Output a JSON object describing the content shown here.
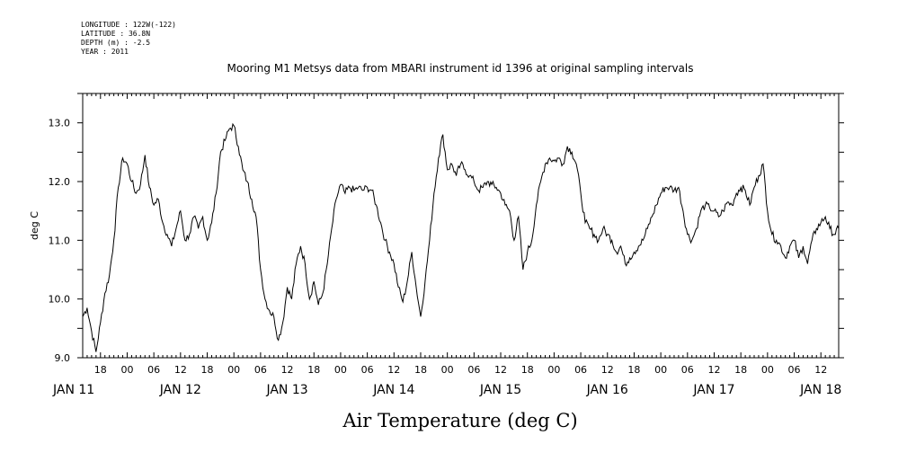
{
  "header": {
    "lines": [
      "LONGITUDE : 122W(-122)",
      "LATITUDE : 36.8N",
      "DEPTH (m) : -2.5",
      "YEAR : 2011"
    ]
  },
  "chart_data": {
    "type": "line",
    "title": "Mooring M1 Metsys data from MBARI instrument id 1396 at original sampling intervals",
    "xlabel": "Air Temperature (deg C)",
    "ylabel": "deg C",
    "xlim": [
      "2011-01-11T14:00",
      "2011-01-18T16:00"
    ],
    "ylim": [
      9.0,
      13.5
    ],
    "yticks": [
      "9.0",
      "10.0",
      "11.0",
      "12.0",
      "13.0"
    ],
    "hour_ticks": [
      {
        "t": "2011-01-11T18:00",
        "label": "18"
      },
      {
        "t": "2011-01-12T00:00",
        "label": "00"
      },
      {
        "t": "2011-01-12T06:00",
        "label": "06"
      },
      {
        "t": "2011-01-12T12:00",
        "label": "12"
      },
      {
        "t": "2011-01-12T18:00",
        "label": "18"
      },
      {
        "t": "2011-01-13T00:00",
        "label": "00"
      },
      {
        "t": "2011-01-13T06:00",
        "label": "06"
      },
      {
        "t": "2011-01-13T12:00",
        "label": "12"
      },
      {
        "t": "2011-01-13T18:00",
        "label": "18"
      },
      {
        "t": "2011-01-14T00:00",
        "label": "00"
      },
      {
        "t": "2011-01-14T06:00",
        "label": "06"
      },
      {
        "t": "2011-01-14T12:00",
        "label": "12"
      },
      {
        "t": "2011-01-14T18:00",
        "label": "18"
      },
      {
        "t": "2011-01-15T00:00",
        "label": "00"
      },
      {
        "t": "2011-01-15T06:00",
        "label": "06"
      },
      {
        "t": "2011-01-15T12:00",
        "label": "12"
      },
      {
        "t": "2011-01-15T18:00",
        "label": "18"
      },
      {
        "t": "2011-01-16T00:00",
        "label": "00"
      },
      {
        "t": "2011-01-16T06:00",
        "label": "06"
      },
      {
        "t": "2011-01-16T12:00",
        "label": "12"
      },
      {
        "t": "2011-01-16T18:00",
        "label": "18"
      },
      {
        "t": "2011-01-17T00:00",
        "label": "00"
      },
      {
        "t": "2011-01-17T06:00",
        "label": "06"
      },
      {
        "t": "2011-01-17T12:00",
        "label": "12"
      },
      {
        "t": "2011-01-17T18:00",
        "label": "18"
      },
      {
        "t": "2011-01-18T00:00",
        "label": "00"
      },
      {
        "t": "2011-01-18T06:00",
        "label": "06"
      },
      {
        "t": "2011-01-18T12:00",
        "label": "12"
      }
    ],
    "day_labels": [
      {
        "t": "2011-01-11T12:00",
        "label": "JAN 11"
      },
      {
        "t": "2011-01-12T12:00",
        "label": "JAN 12"
      },
      {
        "t": "2011-01-13T12:00",
        "label": "JAN 13"
      },
      {
        "t": "2011-01-14T12:00",
        "label": "JAN 14"
      },
      {
        "t": "2011-01-15T12:00",
        "label": "JAN 15"
      },
      {
        "t": "2011-01-16T12:00",
        "label": "JAN 16"
      },
      {
        "t": "2011-01-17T12:00",
        "label": "JAN 17"
      },
      {
        "t": "2011-01-18T12:00",
        "label": "JAN 18"
      }
    ],
    "series": [
      {
        "points": [
          [
            "2011-01-11T14:00",
            9.7
          ],
          [
            "2011-01-11T15:00",
            9.85
          ],
          [
            "2011-01-11T16:00",
            9.45
          ],
          [
            "2011-01-11T17:00",
            9.1
          ],
          [
            "2011-01-11T18:00",
            9.6
          ],
          [
            "2011-01-11T19:00",
            10.1
          ],
          [
            "2011-01-11T20:00",
            10.4
          ],
          [
            "2011-01-11T21:00",
            11.0
          ],
          [
            "2011-01-11T22:00",
            11.9
          ],
          [
            "2011-01-11T23:00",
            12.4
          ],
          [
            "2011-01-12T00:00",
            12.3
          ],
          [
            "2011-01-12T01:00",
            12.0
          ],
          [
            "2011-01-12T02:00",
            11.8
          ],
          [
            "2011-01-12T03:00",
            11.95
          ],
          [
            "2011-01-12T04:00",
            12.45
          ],
          [
            "2011-01-12T05:00",
            11.9
          ],
          [
            "2011-01-12T06:00",
            11.6
          ],
          [
            "2011-01-12T07:00",
            11.7
          ],
          [
            "2011-01-12T08:00",
            11.3
          ],
          [
            "2011-01-12T09:00",
            11.1
          ],
          [
            "2011-01-12T10:00",
            10.9
          ],
          [
            "2011-01-12T11:00",
            11.2
          ],
          [
            "2011-01-12T12:00",
            11.5
          ],
          [
            "2011-01-12T13:00",
            11.0
          ],
          [
            "2011-01-12T14:00",
            11.1
          ],
          [
            "2011-01-12T15:00",
            11.4
          ],
          [
            "2011-01-12T16:00",
            11.2
          ],
          [
            "2011-01-12T17:00",
            11.4
          ],
          [
            "2011-01-12T18:00",
            11.0
          ],
          [
            "2011-01-12T19:00",
            11.3
          ],
          [
            "2011-01-12T20:00",
            11.8
          ],
          [
            "2011-01-12T21:00",
            12.5
          ],
          [
            "2011-01-12T22:00",
            12.7
          ],
          [
            "2011-01-12T23:00",
            12.9
          ],
          [
            "2011-01-13T00:00",
            12.95
          ],
          [
            "2011-01-13T01:00",
            12.6
          ],
          [
            "2011-01-13T02:00",
            12.2
          ],
          [
            "2011-01-13T03:00",
            12.0
          ],
          [
            "2011-01-13T04:00",
            11.7
          ],
          [
            "2011-01-13T05:00",
            11.4
          ],
          [
            "2011-01-13T06:00",
            10.5
          ],
          [
            "2011-01-13T07:00",
            10.0
          ],
          [
            "2011-01-13T08:00",
            9.8
          ],
          [
            "2011-01-13T09:00",
            9.7
          ],
          [
            "2011-01-13T10:00",
            9.3
          ],
          [
            "2011-01-13T11:00",
            9.6
          ],
          [
            "2011-01-13T12:00",
            10.2
          ],
          [
            "2011-01-13T13:00",
            10.0
          ],
          [
            "2011-01-13T14:00",
            10.6
          ],
          [
            "2011-01-13T15:00",
            10.9
          ],
          [
            "2011-01-13T16:00",
            10.6
          ],
          [
            "2011-01-13T17:00",
            10.0
          ],
          [
            "2011-01-13T18:00",
            10.3
          ],
          [
            "2011-01-13T19:00",
            9.9
          ],
          [
            "2011-01-13T20:00",
            10.1
          ],
          [
            "2011-01-13T21:00",
            10.6
          ],
          [
            "2011-01-13T22:00",
            11.2
          ],
          [
            "2011-01-13T23:00",
            11.7
          ],
          [
            "2011-01-14T00:00",
            11.95
          ],
          [
            "2011-01-14T01:00",
            11.8
          ],
          [
            "2011-01-14T02:00",
            11.9
          ],
          [
            "2011-01-14T03:00",
            11.85
          ],
          [
            "2011-01-14T04:00",
            11.9
          ],
          [
            "2011-01-14T05:00",
            11.85
          ],
          [
            "2011-01-14T06:00",
            11.9
          ],
          [
            "2011-01-14T07:00",
            11.85
          ],
          [
            "2011-01-14T08:00",
            11.6
          ],
          [
            "2011-01-14T09:00",
            11.3
          ],
          [
            "2011-01-14T10:00",
            11.0
          ],
          [
            "2011-01-14T11:00",
            10.8
          ],
          [
            "2011-01-14T12:00",
            10.6
          ],
          [
            "2011-01-14T13:00",
            10.2
          ],
          [
            "2011-01-14T14:00",
            9.95
          ],
          [
            "2011-01-14T15:00",
            10.3
          ],
          [
            "2011-01-14T16:00",
            10.8
          ],
          [
            "2011-01-14T17:00",
            10.2
          ],
          [
            "2011-01-14T18:00",
            9.7
          ],
          [
            "2011-01-14T19:00",
            10.3
          ],
          [
            "2011-01-14T20:00",
            11.0
          ],
          [
            "2011-01-14T21:00",
            11.8
          ],
          [
            "2011-01-14T22:00",
            12.4
          ],
          [
            "2011-01-14T23:00",
            12.8
          ],
          [
            "2011-01-15T00:00",
            12.2
          ],
          [
            "2011-01-15T01:00",
            12.3
          ],
          [
            "2011-01-15T02:00",
            12.1
          ],
          [
            "2011-01-15T03:00",
            12.3
          ],
          [
            "2011-01-15T04:00",
            12.2
          ],
          [
            "2011-01-15T05:00",
            12.1
          ],
          [
            "2011-01-15T06:00",
            12.0
          ],
          [
            "2011-01-15T07:00",
            11.85
          ],
          [
            "2011-01-15T08:00",
            11.9
          ],
          [
            "2011-01-15T09:00",
            12.0
          ],
          [
            "2011-01-15T10:00",
            11.95
          ],
          [
            "2011-01-15T11:00",
            11.9
          ],
          [
            "2011-01-15T12:00",
            11.8
          ],
          [
            "2011-01-15T13:00",
            11.6
          ],
          [
            "2011-01-15T14:00",
            11.5
          ],
          [
            "2011-01-15T15:00",
            11.0
          ],
          [
            "2011-01-15T16:00",
            11.4
          ],
          [
            "2011-01-15T17:00",
            10.5
          ],
          [
            "2011-01-15T18:00",
            10.8
          ],
          [
            "2011-01-15T19:00",
            11.0
          ],
          [
            "2011-01-15T20:00",
            11.6
          ],
          [
            "2011-01-15T21:00",
            12.0
          ],
          [
            "2011-01-15T22:00",
            12.3
          ],
          [
            "2011-01-15T23:00",
            12.4
          ],
          [
            "2011-01-16T00:00",
            12.35
          ],
          [
            "2011-01-16T01:00",
            12.4
          ],
          [
            "2011-01-16T02:00",
            12.3
          ],
          [
            "2011-01-16T03:00",
            12.6
          ],
          [
            "2011-01-16T04:00",
            12.5
          ],
          [
            "2011-01-16T05:00",
            12.3
          ],
          [
            "2011-01-16T06:00",
            11.8
          ],
          [
            "2011-01-16T07:00",
            11.3
          ],
          [
            "2011-01-16T08:00",
            11.2
          ],
          [
            "2011-01-16T09:00",
            11.1
          ],
          [
            "2011-01-16T10:00",
            11.0
          ],
          [
            "2011-01-16T11:00",
            11.2
          ],
          [
            "2011-01-16T12:00",
            11.1
          ],
          [
            "2011-01-16T13:00",
            11.0
          ],
          [
            "2011-01-16T14:00",
            10.8
          ],
          [
            "2011-01-16T15:00",
            10.9
          ],
          [
            "2011-01-16T16:00",
            10.6
          ],
          [
            "2011-01-16T17:00",
            10.7
          ],
          [
            "2011-01-16T18:00",
            10.8
          ],
          [
            "2011-01-16T19:00",
            10.9
          ],
          [
            "2011-01-16T20:00",
            11.0
          ],
          [
            "2011-01-16T21:00",
            11.2
          ],
          [
            "2011-01-16T22:00",
            11.4
          ],
          [
            "2011-01-16T23:00",
            11.6
          ],
          [
            "2011-01-17T00:00",
            11.8
          ],
          [
            "2011-01-17T01:00",
            11.9
          ],
          [
            "2011-01-17T02:00",
            11.9
          ],
          [
            "2011-01-17T03:00",
            11.85
          ],
          [
            "2011-01-17T04:00",
            11.9
          ],
          [
            "2011-01-17T05:00",
            11.5
          ],
          [
            "2011-01-17T06:00",
            11.1
          ],
          [
            "2011-01-17T07:00",
            11.0
          ],
          [
            "2011-01-17T08:00",
            11.2
          ],
          [
            "2011-01-17T09:00",
            11.5
          ],
          [
            "2011-01-17T10:00",
            11.6
          ],
          [
            "2011-01-17T11:00",
            11.55
          ],
          [
            "2011-01-17T12:00",
            11.5
          ],
          [
            "2011-01-17T13:00",
            11.4
          ],
          [
            "2011-01-17T14:00",
            11.5
          ],
          [
            "2011-01-17T15:00",
            11.65
          ],
          [
            "2011-01-17T16:00",
            11.6
          ],
          [
            "2011-01-17T17:00",
            11.8
          ],
          [
            "2011-01-17T18:00",
            11.9
          ],
          [
            "2011-01-17T19:00",
            11.85
          ],
          [
            "2011-01-17T20:00",
            11.6
          ],
          [
            "2011-01-17T21:00",
            11.9
          ],
          [
            "2011-01-17T22:00",
            12.1
          ],
          [
            "2011-01-17T23:00",
            12.3
          ],
          [
            "2011-01-18T00:00",
            11.5
          ],
          [
            "2011-01-18T01:00",
            11.1
          ],
          [
            "2011-01-18T02:00",
            11.0
          ],
          [
            "2011-01-18T03:00",
            10.9
          ],
          [
            "2011-01-18T04:00",
            10.7
          ],
          [
            "2011-01-18T05:00",
            10.9
          ],
          [
            "2011-01-18T06:00",
            11.0
          ],
          [
            "2011-01-18T07:00",
            10.7
          ],
          [
            "2011-01-18T08:00",
            10.9
          ],
          [
            "2011-01-18T09:00",
            10.6
          ],
          [
            "2011-01-18T10:00",
            11.0
          ],
          [
            "2011-01-18T11:00",
            11.2
          ],
          [
            "2011-01-18T12:00",
            11.3
          ],
          [
            "2011-01-18T13:00",
            11.4
          ],
          [
            "2011-01-18T14:00",
            11.2
          ],
          [
            "2011-01-18T15:00",
            11.1
          ],
          [
            "2011-01-18T16:00",
            11.2
          ]
        ]
      }
    ],
    "grid": false,
    "legend": "none"
  }
}
